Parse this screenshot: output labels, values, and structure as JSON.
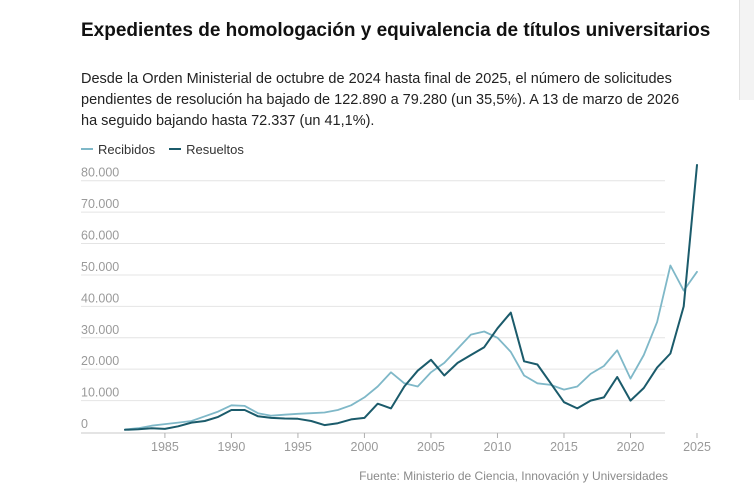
{
  "header": {
    "title": "Expedientes de homologación y equivalencia de títulos universitarios",
    "subtitle": "Desde la Orden Ministerial de octubre de 2024 hasta final de 2025, el número de solicitudes pendientes de resolución ha bajado de 122.890 a 79.280 (un 35,5%). A 13 de marzo de 2026 ha seguido bajando hasta 72.337 (un 41,1%)."
  },
  "source": "Fuente: Ministerio de Ciencia, Innovación y Universidades",
  "colors": {
    "recibidos": "#7fb8c8",
    "resueltos": "#1b5b6b",
    "grid": "#e4e4e4",
    "tick": "#b0b0b0"
  },
  "chart_data": {
    "type": "line",
    "legend_position": "top-left",
    "grid": true,
    "x": [
      1982,
      1983,
      1984,
      1985,
      1986,
      1987,
      1988,
      1989,
      1990,
      1991,
      1992,
      1993,
      1994,
      1995,
      1996,
      1997,
      1998,
      1999,
      2000,
      2001,
      2002,
      2003,
      2004,
      2005,
      2006,
      2007,
      2008,
      2009,
      2010,
      2011,
      2012,
      2013,
      2014,
      2015,
      2016,
      2017,
      2018,
      2019,
      2020,
      2021,
      2022,
      2023,
      2024,
      2025
    ],
    "xlim": [
      1982,
      2025
    ],
    "ylim": [
      0,
      85000
    ],
    "x_ticks": [
      1985,
      1990,
      1995,
      2000,
      2005,
      2010,
      2015,
      2020,
      2025
    ],
    "x_tick_labels": [
      "1985",
      "1990",
      "1995",
      "2000",
      "2005",
      "2010",
      "2015",
      "2020",
      "2025"
    ],
    "y_ticks": [
      0,
      10000,
      20000,
      30000,
      40000,
      50000,
      60000,
      70000,
      80000
    ],
    "y_tick_labels": [
      "0",
      "10.000",
      "20.000",
      "30.000",
      "40.000",
      "50.000",
      "60.000",
      "70.000",
      "80.000"
    ],
    "series": [
      {
        "name": "Recibidos",
        "color": "#7fb8c8",
        "values": [
          800,
          1200,
          2000,
          2500,
          3000,
          3500,
          5000,
          6500,
          8500,
          8300,
          6000,
          5200,
          5500,
          5800,
          6000,
          6200,
          7000,
          8500,
          11000,
          14500,
          19000,
          15500,
          14500,
          19000,
          22000,
          26500,
          31000,
          32000,
          30000,
          25500,
          18000,
          15500,
          15000,
          13500,
          14500,
          18500,
          21000,
          26000,
          17000,
          24500,
          35000,
          53000,
          45000,
          51000
        ]
      },
      {
        "name": "Resueltos",
        "color": "#1b5b6b",
        "values": [
          700,
          900,
          1200,
          1000,
          1800,
          3000,
          3500,
          4800,
          7000,
          7000,
          5000,
          4500,
          4300,
          4200,
          3500,
          2200,
          2800,
          4000,
          4500,
          9000,
          7500,
          14500,
          19500,
          23000,
          18000,
          22000,
          24500,
          27000,
          33000,
          38000,
          22500,
          21500,
          15500,
          9500,
          7500,
          10000,
          11000,
          17500,
          10000,
          14000,
          20500,
          25000,
          40000,
          85000
        ]
      }
    ]
  }
}
